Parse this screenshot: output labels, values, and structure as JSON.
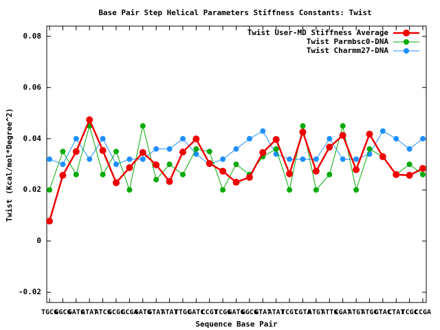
{
  "chart_data": {
    "type": "line",
    "title": "Base Pair Step Helical Parameters Stiffness Constants: Twist",
    "xlabel": "Sequence Base Pair",
    "ylabel": "Twist (Kcal/mol*Degree^2)",
    "categories": [
      "TGCG",
      "GGCG",
      "GATC",
      "ATAT",
      "ATCG",
      "GCGC",
      "GCGA",
      "GATG",
      "GTAT",
      "ATAT",
      "TTGC",
      "GATC",
      "CCGT",
      "TCGG",
      "GATG",
      "GGCG",
      "GTAT",
      "ATAT",
      "TCGT",
      "CGTA",
      "ATGT",
      "ATTG",
      "CGAT",
      "ATGT",
      "ATGC",
      "GTAC",
      "CTAT",
      "TCGC",
      "CCGA"
    ],
    "ylim": [
      -0.024,
      0.084
    ],
    "yticks": [
      -0.02,
      0,
      0.02,
      0.04,
      0.06,
      0.08
    ],
    "legend": "upper right",
    "series": [
      {
        "name": "Twist User-MD Stiffness Average",
        "color": "#ee0000",
        "values": [
          0.0078,
          0.0257,
          0.035,
          0.0474,
          0.0354,
          0.0228,
          0.0287,
          0.0346,
          0.0298,
          0.0233,
          0.0348,
          0.0399,
          0.0303,
          0.0273,
          0.023,
          0.0249,
          0.0346,
          0.0397,
          0.0263,
          0.0426,
          0.0273,
          0.0367,
          0.0413,
          0.0279,
          0.0418,
          0.033,
          0.026,
          0.0257,
          0.0284
        ]
      },
      {
        "name": "Twist Parmbsc0-DNA",
        "color": "#00aa00",
        "values": [
          0.02,
          0.035,
          0.026,
          0.045,
          0.026,
          0.035,
          0.02,
          0.045,
          0.024,
          0.03,
          0.026,
          0.036,
          0.035,
          0.02,
          0.03,
          0.026,
          0.033,
          0.036,
          0.02,
          0.045,
          0.02,
          0.026,
          0.045,
          0.02,
          0.036,
          0.033,
          0.026,
          0.03,
          0.026
        ]
      },
      {
        "name": "Twist Charmm27-DNA",
        "color": "#1e90ff",
        "values": [
          0.032,
          0.03,
          0.04,
          0.032,
          0.04,
          0.03,
          0.032,
          0.032,
          0.036,
          0.036,
          0.04,
          0.034,
          0.03,
          0.032,
          0.036,
          0.04,
          0.043,
          0.034,
          0.032,
          0.032,
          0.032,
          0.04,
          0.032,
          0.032,
          0.034,
          0.043,
          0.04,
          0.036,
          0.04
        ]
      }
    ]
  }
}
